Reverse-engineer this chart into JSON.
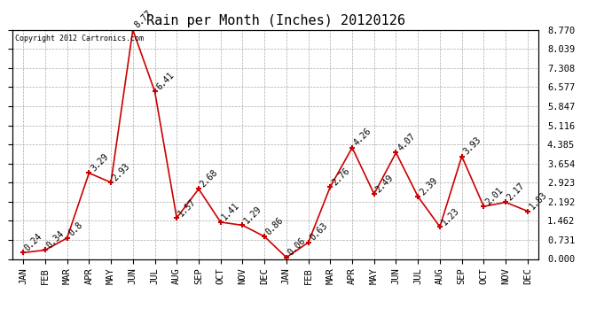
{
  "title": "Rain per Month (Inches) 20120126",
  "copyright_text": "Copyright 2012 Cartronics.com",
  "categories": [
    "JAN",
    "FEB",
    "MAR",
    "APR",
    "MAY",
    "JUN",
    "JUL",
    "AUG",
    "SEP",
    "OCT",
    "NOV",
    "DEC",
    "JAN",
    "FEB",
    "MAR",
    "APR",
    "MAY",
    "JUN",
    "JUL",
    "AUG",
    "SEP",
    "OCT",
    "NOV",
    "DEC"
  ],
  "values": [
    0.24,
    0.34,
    0.8,
    3.29,
    2.93,
    8.77,
    6.41,
    1.57,
    2.68,
    1.41,
    1.29,
    0.86,
    0.06,
    0.63,
    2.76,
    4.26,
    2.49,
    4.07,
    2.39,
    1.23,
    3.93,
    2.01,
    2.17,
    1.83
  ],
  "line_color": "#cc0000",
  "marker_color": "#cc0000",
  "bg_color": "#ffffff",
  "grid_color": "#aaaaaa",
  "text_color": "#000000",
  "ylim": [
    0.0,
    8.77
  ],
  "yticks": [
    0.0,
    0.731,
    1.462,
    2.192,
    2.923,
    3.654,
    4.385,
    5.116,
    5.847,
    6.577,
    7.308,
    8.039,
    8.77
  ],
  "title_fontsize": 11,
  "tick_fontsize": 7.5,
  "annotation_fontsize": 7
}
